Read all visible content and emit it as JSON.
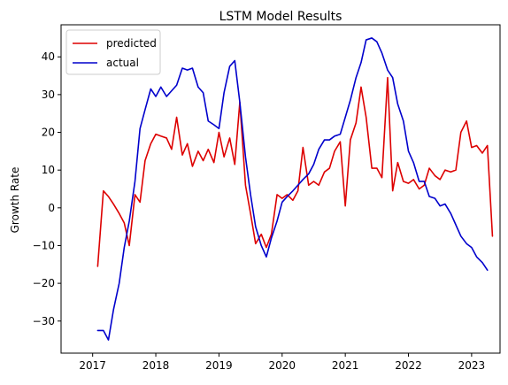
{
  "chart_data": {
    "type": "line",
    "title": "LSTM Model Results",
    "xlabel": "",
    "ylabel": "Growth Rate",
    "xlim": [
      2016.5,
      2023.45
    ],
    "ylim": [
      -38.5,
      48.5
    ],
    "x_ticks": [
      2017,
      2018,
      2019,
      2020,
      2021,
      2022,
      2023
    ],
    "x_tick_labels": [
      "2017",
      "2018",
      "2019",
      "2020",
      "2021",
      "2022",
      "2023"
    ],
    "y_ticks": [
      -30,
      -20,
      -10,
      0,
      10,
      20,
      30,
      40
    ],
    "y_tick_labels": [
      "−30",
      "−20",
      "−10",
      "0",
      "10",
      "20",
      "30",
      "40"
    ],
    "grid": false,
    "legend_position": "top-left",
    "series": [
      {
        "name": "predicted",
        "color": "#dd0000",
        "points": [
          [
            2017.08,
            -15.5
          ],
          [
            2017.17,
            4.5
          ],
          [
            2017.25,
            3.0
          ],
          [
            2017.33,
            1.0
          ],
          [
            2017.42,
            -1.5
          ],
          [
            2017.5,
            -4.0
          ],
          [
            2017.58,
            -10.0
          ],
          [
            2017.67,
            3.5
          ],
          [
            2017.75,
            1.5
          ],
          [
            2017.83,
            12.5
          ],
          [
            2017.92,
            17.0
          ],
          [
            2018.0,
            19.5
          ],
          [
            2018.08,
            19.0
          ],
          [
            2018.17,
            18.5
          ],
          [
            2018.25,
            15.5
          ],
          [
            2018.33,
            24.0
          ],
          [
            2018.42,
            14.0
          ],
          [
            2018.5,
            17.0
          ],
          [
            2018.58,
            11.0
          ],
          [
            2018.67,
            15.0
          ],
          [
            2018.75,
            12.5
          ],
          [
            2018.83,
            15.5
          ],
          [
            2018.92,
            12.0
          ],
          [
            2019.0,
            20.0
          ],
          [
            2019.08,
            13.5
          ],
          [
            2019.17,
            18.5
          ],
          [
            2019.25,
            11.5
          ],
          [
            2019.33,
            28.0
          ],
          [
            2019.42,
            6.0
          ],
          [
            2019.5,
            -1.5
          ],
          [
            2019.58,
            -9.5
          ],
          [
            2019.67,
            -7.0
          ],
          [
            2019.75,
            -10.5
          ],
          [
            2019.83,
            -7.0
          ],
          [
            2019.92,
            3.5
          ],
          [
            2020.0,
            2.5
          ],
          [
            2020.08,
            3.5
          ],
          [
            2020.17,
            2.0
          ],
          [
            2020.25,
            4.5
          ],
          [
            2020.33,
            16.0
          ],
          [
            2020.42,
            6.0
          ],
          [
            2020.5,
            7.0
          ],
          [
            2020.58,
            6.0
          ],
          [
            2020.67,
            9.5
          ],
          [
            2020.75,
            10.5
          ],
          [
            2020.83,
            15.0
          ],
          [
            2020.92,
            17.5
          ],
          [
            2021.0,
            0.5
          ],
          [
            2021.08,
            18.0
          ],
          [
            2021.17,
            22.5
          ],
          [
            2021.25,
            32.0
          ],
          [
            2021.33,
            24.0
          ],
          [
            2021.42,
            10.5
          ],
          [
            2021.5,
            10.5
          ],
          [
            2021.58,
            8.0
          ],
          [
            2021.67,
            34.5
          ],
          [
            2021.75,
            4.5
          ],
          [
            2021.83,
            12.0
          ],
          [
            2021.92,
            7.0
          ],
          [
            2022.0,
            6.5
          ],
          [
            2022.08,
            7.5
          ],
          [
            2022.17,
            5.0
          ],
          [
            2022.25,
            6.0
          ],
          [
            2022.33,
            10.5
          ],
          [
            2022.42,
            8.5
          ],
          [
            2022.5,
            7.5
          ],
          [
            2022.58,
            10.0
          ],
          [
            2022.67,
            9.5
          ],
          [
            2022.75,
            10.0
          ],
          [
            2022.83,
            20.0
          ],
          [
            2022.92,
            23.0
          ],
          [
            2023.0,
            16.0
          ],
          [
            2023.08,
            16.5
          ],
          [
            2023.17,
            14.5
          ],
          [
            2023.25,
            16.5
          ],
          [
            2023.33,
            -7.5
          ]
        ]
      },
      {
        "name": "actual",
        "color": "#0000cc",
        "points": [
          [
            2017.08,
            -32.5
          ],
          [
            2017.17,
            -32.5
          ],
          [
            2017.25,
            -35.0
          ],
          [
            2017.33,
            -27.0
          ],
          [
            2017.42,
            -20.0
          ],
          [
            2017.5,
            -10.5
          ],
          [
            2017.58,
            -3.5
          ],
          [
            2017.67,
            7.0
          ],
          [
            2017.75,
            21.0
          ],
          [
            2017.83,
            26.0
          ],
          [
            2017.92,
            31.5
          ],
          [
            2018.0,
            29.5
          ],
          [
            2018.08,
            32.0
          ],
          [
            2018.17,
            29.5
          ],
          [
            2018.25,
            31.0
          ],
          [
            2018.33,
            32.5
          ],
          [
            2018.42,
            37.0
          ],
          [
            2018.5,
            36.5
          ],
          [
            2018.58,
            37.0
          ],
          [
            2018.67,
            32.0
          ],
          [
            2018.75,
            30.5
          ],
          [
            2018.83,
            23.0
          ],
          [
            2018.92,
            22.0
          ],
          [
            2019.0,
            21.0
          ],
          [
            2019.08,
            30.5
          ],
          [
            2019.17,
            37.5
          ],
          [
            2019.25,
            39.0
          ],
          [
            2019.33,
            28.0
          ],
          [
            2019.42,
            13.5
          ],
          [
            2019.5,
            3.5
          ],
          [
            2019.58,
            -5.0
          ],
          [
            2019.67,
            -10.0
          ],
          [
            2019.75,
            -13.0
          ],
          [
            2019.83,
            -8.0
          ],
          [
            2019.92,
            -3.5
          ],
          [
            2020.0,
            1.5
          ],
          [
            2020.08,
            3.0
          ],
          [
            2020.17,
            4.5
          ],
          [
            2020.25,
            6.0
          ],
          [
            2020.33,
            7.5
          ],
          [
            2020.42,
            9.0
          ],
          [
            2020.5,
            11.5
          ],
          [
            2020.58,
            15.5
          ],
          [
            2020.67,
            18.0
          ],
          [
            2020.75,
            18.0
          ],
          [
            2020.83,
            19.0
          ],
          [
            2020.92,
            19.5
          ],
          [
            2021.0,
            24.0
          ],
          [
            2021.08,
            28.5
          ],
          [
            2021.17,
            34.5
          ],
          [
            2021.25,
            38.5
          ],
          [
            2021.33,
            44.5
          ],
          [
            2021.42,
            45.0
          ],
          [
            2021.5,
            44.0
          ],
          [
            2021.58,
            41.0
          ],
          [
            2021.67,
            36.5
          ],
          [
            2021.75,
            34.5
          ],
          [
            2021.83,
            27.5
          ],
          [
            2021.92,
            23.0
          ],
          [
            2022.0,
            15.0
          ],
          [
            2022.08,
            12.0
          ],
          [
            2022.17,
            7.0
          ],
          [
            2022.25,
            7.0
          ],
          [
            2022.33,
            3.0
          ],
          [
            2022.42,
            2.5
          ],
          [
            2022.5,
            0.5
          ],
          [
            2022.58,
            1.0
          ],
          [
            2022.67,
            -1.5
          ],
          [
            2022.75,
            -4.5
          ],
          [
            2022.83,
            -7.5
          ],
          [
            2022.92,
            -9.5
          ],
          [
            2023.0,
            -10.5
          ],
          [
            2023.08,
            -13.0
          ],
          [
            2023.17,
            -14.5
          ],
          [
            2023.25,
            -16.5
          ]
        ]
      }
    ]
  }
}
